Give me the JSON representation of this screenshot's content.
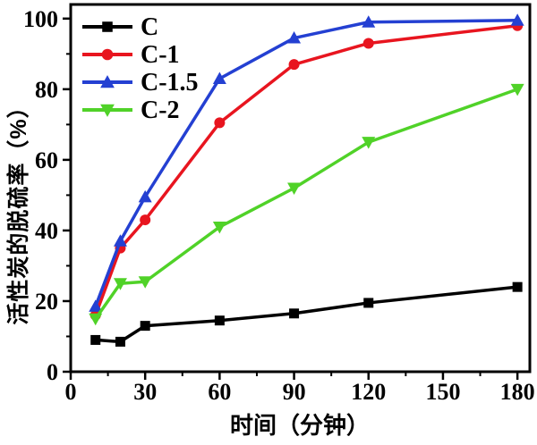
{
  "chart_data": {
    "type": "line",
    "title": "",
    "xlabel": "时间（分钟）",
    "ylabel": "活性炭的脱硫率（%）",
    "x": [
      10,
      20,
      30,
      60,
      90,
      120,
      180
    ],
    "series": [
      {
        "name": "C",
        "color": "#000000",
        "marker": "square",
        "values": [
          9,
          8.5,
          13,
          14.5,
          16.5,
          19.5,
          24
        ]
      },
      {
        "name": "C-1",
        "color": "#e8151f",
        "marker": "circle",
        "values": [
          16,
          35,
          43,
          70.5,
          87,
          93,
          98
        ]
      },
      {
        "name": "C-1.5",
        "color": "#2440d2",
        "marker": "triangle-up",
        "values": [
          18.5,
          37,
          49.5,
          83,
          94.5,
          99,
          99.5
        ]
      },
      {
        "name": "C-2",
        "color": "#50d228",
        "marker": "triangle-down",
        "values": [
          15,
          25,
          25.5,
          41,
          52,
          65,
          80
        ]
      }
    ],
    "xlim": [
      0,
      185
    ],
    "ylim": [
      0,
      104
    ],
    "x_major_ticks": [
      0,
      30,
      60,
      90,
      120,
      150,
      180
    ],
    "x_minor_step": 15,
    "y_major_ticks": [
      0,
      20,
      40,
      60,
      80,
      100
    ],
    "y_minor_step": 10,
    "grid": false,
    "legend_position": "top-left",
    "frame_color": "#000000",
    "background_color": "#ffffff"
  }
}
